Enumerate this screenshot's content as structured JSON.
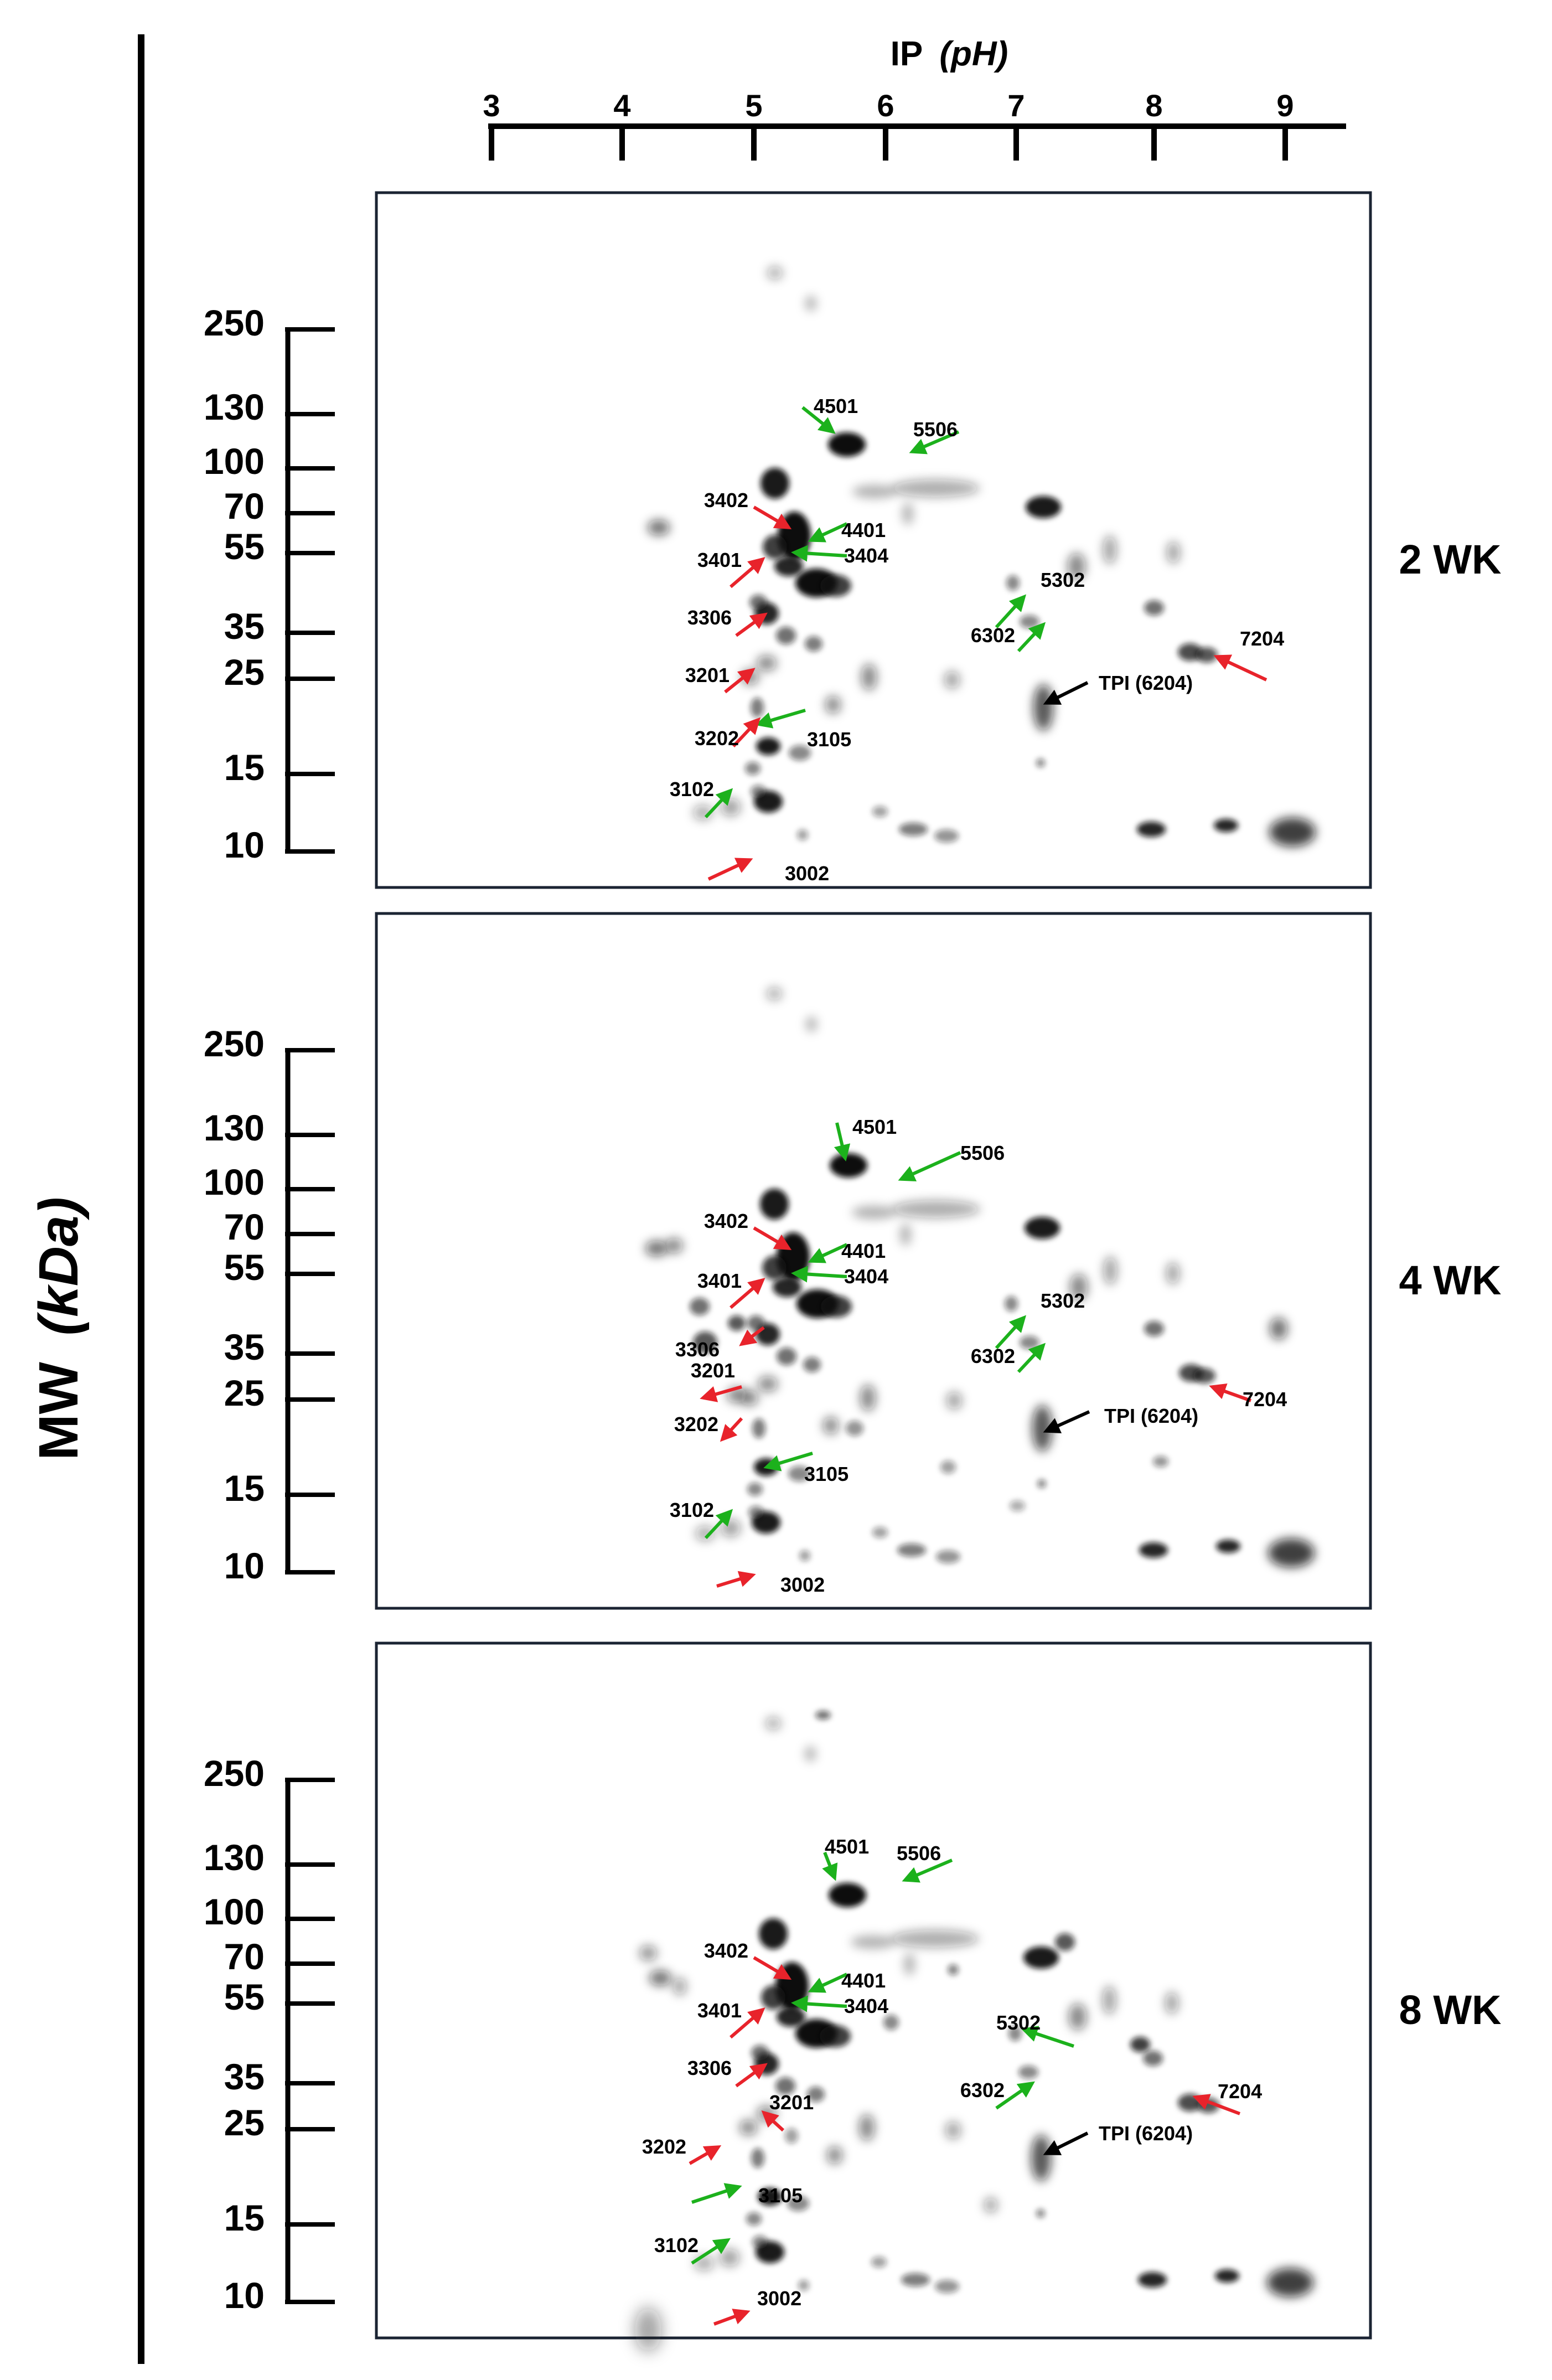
{
  "figure": {
    "y_axis_title_prefix": "MW",
    "y_axis_title_unit": "(kDa)",
    "x_axis_title_prefix": "IP",
    "x_axis_title_unit": "(pH)",
    "ph_ticks": [
      "3",
      "4",
      "5",
      "6",
      "7",
      "8",
      "9"
    ],
    "mw_ticks": [
      "250",
      "130",
      "100",
      "70",
      "55",
      "35",
      "25",
      "15",
      "10"
    ],
    "colors": {
      "up_arrow": "#e8232b",
      "down_arrow": "#1cb11c",
      "ref_arrow": "#000000",
      "spot": "#111111",
      "frame": "#1b2433"
    }
  },
  "panels": [
    {
      "label": "2 WK",
      "spots": [
        {
          "id": "3002",
          "arrow": "red"
        },
        {
          "id": "3102",
          "arrow": "green"
        },
        {
          "id": "3105",
          "arrow": "green"
        },
        {
          "id": "3202",
          "arrow": "red"
        },
        {
          "id": "3201",
          "arrow": "red"
        },
        {
          "id": "3306",
          "arrow": "red"
        },
        {
          "id": "3401",
          "arrow": "red"
        },
        {
          "id": "3402",
          "arrow": "red"
        },
        {
          "id": "3404",
          "arrow": "green"
        },
        {
          "id": "4401",
          "arrow": "green"
        },
        {
          "id": "4501",
          "arrow": "green"
        },
        {
          "id": "5506",
          "arrow": "green"
        },
        {
          "id": "5302",
          "arrow": "green"
        },
        {
          "id": "6302",
          "arrow": "green"
        },
        {
          "id": "7204",
          "arrow": "red"
        },
        {
          "id": "TPI (6204)",
          "arrow": "black"
        }
      ]
    },
    {
      "label": "4 WK",
      "spots": [
        {
          "id": "3002",
          "arrow": "red"
        },
        {
          "id": "3102",
          "arrow": "green"
        },
        {
          "id": "3105",
          "arrow": "green"
        },
        {
          "id": "3202",
          "arrow": "red"
        },
        {
          "id": "3201",
          "arrow": "red"
        },
        {
          "id": "3306",
          "arrow": "red"
        },
        {
          "id": "3401",
          "arrow": "red"
        },
        {
          "id": "3402",
          "arrow": "red"
        },
        {
          "id": "3404",
          "arrow": "green"
        },
        {
          "id": "4401",
          "arrow": "green"
        },
        {
          "id": "4501",
          "arrow": "green"
        },
        {
          "id": "5506",
          "arrow": "green"
        },
        {
          "id": "5302",
          "arrow": "green"
        },
        {
          "id": "6302",
          "arrow": "green"
        },
        {
          "id": "7204",
          "arrow": "red"
        },
        {
          "id": "TPI (6204)",
          "arrow": "black"
        }
      ]
    },
    {
      "label": "8 WK",
      "spots": [
        {
          "id": "3002",
          "arrow": "red"
        },
        {
          "id": "3102",
          "arrow": "green"
        },
        {
          "id": "3105",
          "arrow": "green"
        },
        {
          "id": "3202",
          "arrow": "red"
        },
        {
          "id": "3201",
          "arrow": "red"
        },
        {
          "id": "3306",
          "arrow": "red"
        },
        {
          "id": "3401",
          "arrow": "red"
        },
        {
          "id": "3402",
          "arrow": "red"
        },
        {
          "id": "3404",
          "arrow": "green"
        },
        {
          "id": "4401",
          "arrow": "green"
        },
        {
          "id": "4501",
          "arrow": "green"
        },
        {
          "id": "5506",
          "arrow": "green"
        },
        {
          "id": "5302",
          "arrow": "green"
        },
        {
          "id": "6302",
          "arrow": "green"
        },
        {
          "id": "7204",
          "arrow": "red"
        },
        {
          "id": "TPI (6204)",
          "arrow": "black"
        }
      ]
    }
  ]
}
